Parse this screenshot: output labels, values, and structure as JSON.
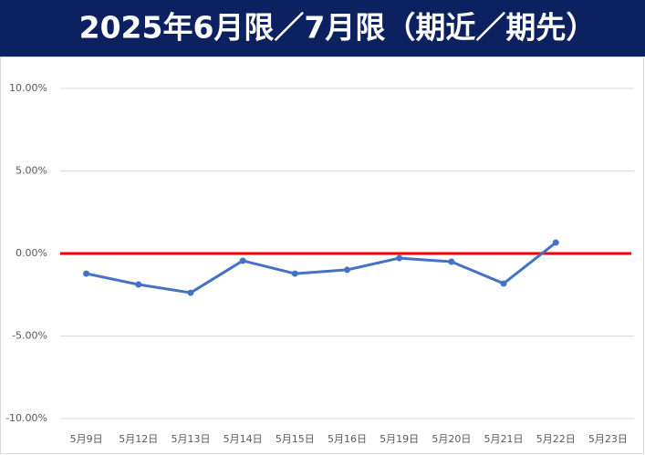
{
  "chart_data": {
    "type": "line",
    "title": "2025年6月限／7月限（期近／期先）",
    "categories": [
      "5月9日",
      "5月12日",
      "5月13日",
      "5月14日",
      "5月15日",
      "5月16日",
      "5月19日",
      "5月20日",
      "5月21日",
      "5月22日",
      "5月23日"
    ],
    "series": [
      {
        "color": "#4472c4",
        "values": [
          -1.22,
          -1.88,
          -2.38,
          -0.44,
          -1.22,
          -0.99,
          -0.28,
          -0.5,
          -1.82,
          0.66,
          null
        ]
      }
    ],
    "ylim": [
      -10,
      10
    ],
    "yticks": [
      {
        "value": -10,
        "label": "-10.00%"
      },
      {
        "value": -5,
        "label": "-5.00%"
      },
      {
        "value": 0,
        "label": "0.00%"
      },
      {
        "value": 5,
        "label": "5.00%"
      },
      {
        "value": 10,
        "label": "10.00%"
      }
    ],
    "grid": true,
    "reference_line": {
      "value": 0,
      "color": "#ff0000"
    }
  }
}
